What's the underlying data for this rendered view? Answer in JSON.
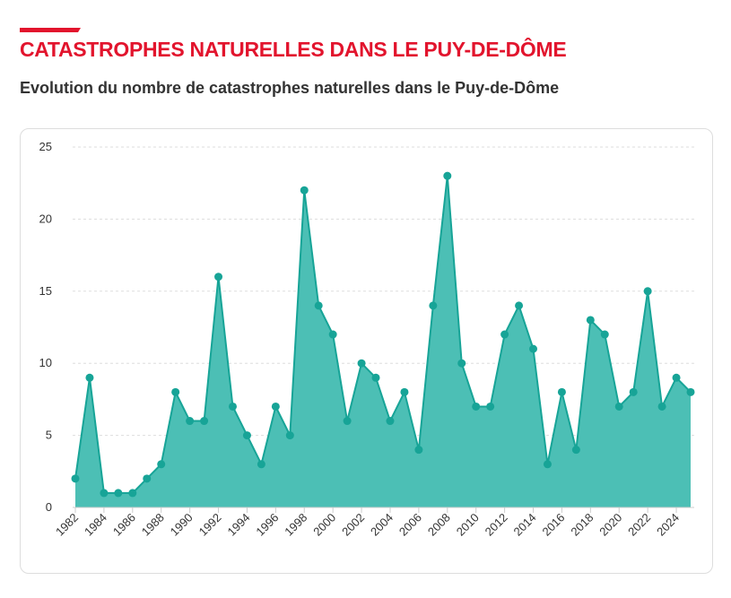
{
  "header": {
    "title": "CATASTROPHES NATURELLES DANS LE PUY-DE-DÔME",
    "subtitle": "Evolution du nombre de catastrophes naturelles dans le Puy-de-Dôme"
  },
  "colors": {
    "accent": "#e2142d",
    "series_line": "#17a497",
    "series_fill": "#4cbfb5",
    "point": "#17a497",
    "grid": "#dddddd",
    "text": "#333333"
  },
  "chart_data": {
    "type": "area",
    "title": "",
    "xlabel": "",
    "ylabel": "",
    "x": [
      1982,
      1983,
      1984,
      1985,
      1986,
      1987,
      1988,
      1989,
      1990,
      1991,
      1992,
      1993,
      1994,
      1995,
      1996,
      1997,
      1998,
      1999,
      2000,
      2001,
      2002,
      2003,
      2004,
      2005,
      2006,
      2007,
      2008,
      2009,
      2010,
      2011,
      2012,
      2013,
      2014,
      2015,
      2016,
      2017,
      2018,
      2019,
      2020,
      2021,
      2022,
      2023,
      2024,
      2025
    ],
    "values": [
      2,
      9,
      1,
      1,
      1,
      2,
      3,
      8,
      6,
      6,
      16,
      7,
      5,
      3,
      7,
      5,
      22,
      14,
      12,
      6,
      10,
      9,
      6,
      8,
      4,
      14,
      23,
      10,
      7,
      7,
      12,
      14,
      11,
      3,
      8,
      4,
      13,
      12,
      7,
      8,
      15,
      7,
      9,
      8
    ],
    "x_tick_labels": [
      "1982",
      "1984",
      "1986",
      "1988",
      "1990",
      "1992",
      "1994",
      "1996",
      "1998",
      "2000",
      "2002",
      "2004",
      "2006",
      "2008",
      "2010",
      "2012",
      "2014",
      "2016",
      "2018",
      "2020",
      "2022",
      "2024"
    ],
    "ylim": [
      0,
      25
    ],
    "y_ticks": [
      "0",
      "5",
      "10",
      "15",
      "20",
      "25"
    ],
    "grid": "horizontal-dashed",
    "legend": "none"
  }
}
